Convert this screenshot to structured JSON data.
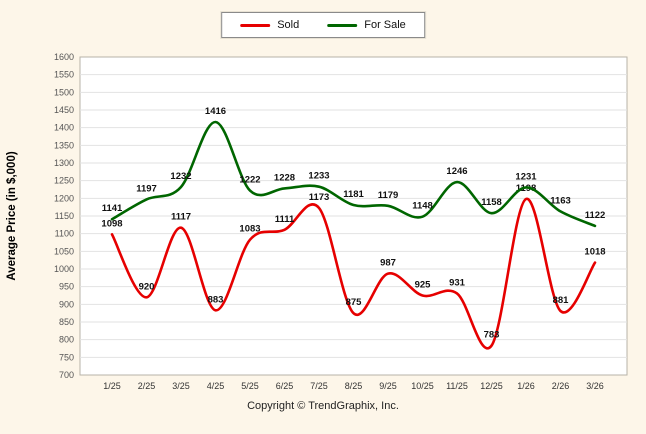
{
  "chart": {
    "copyright": "Copyright © TrendGraphix, Inc."
  },
  "chart_data": {
    "type": "line",
    "title": "",
    "xlabel": "",
    "ylabel": "Average Price (in $,000)",
    "categories": [
      "1/25",
      "2/25",
      "3/25",
      "4/25",
      "5/25",
      "6/25",
      "7/25",
      "8/25",
      "9/25",
      "10/25",
      "11/25",
      "12/25",
      "1/26",
      "2/26",
      "3/26"
    ],
    "series": [
      {
        "name": "Sold",
        "color": "#e60000",
        "values": [
          1098,
          920,
          1117,
          883,
          1083,
          1111,
          1173,
          875,
          987,
          925,
          931,
          783,
          1198,
          881,
          1018
        ]
      },
      {
        "name": "For Sale",
        "color": "#006600",
        "values": [
          1141,
          1197,
          1232,
          1416,
          1222,
          1228,
          1233,
          1181,
          1179,
          1148,
          1246,
          1158,
          1231,
          1163,
          1122
        ]
      }
    ],
    "ylim": [
      700,
      1600
    ],
    "ytick_step": 50,
    "grid": "horizontal",
    "legend_position": "top-center",
    "plot_background": "#ffffff",
    "page_background": "#fdf6e9",
    "gridline_color": "#e2e2e2",
    "plot_border_color": "#b7b3a8"
  }
}
